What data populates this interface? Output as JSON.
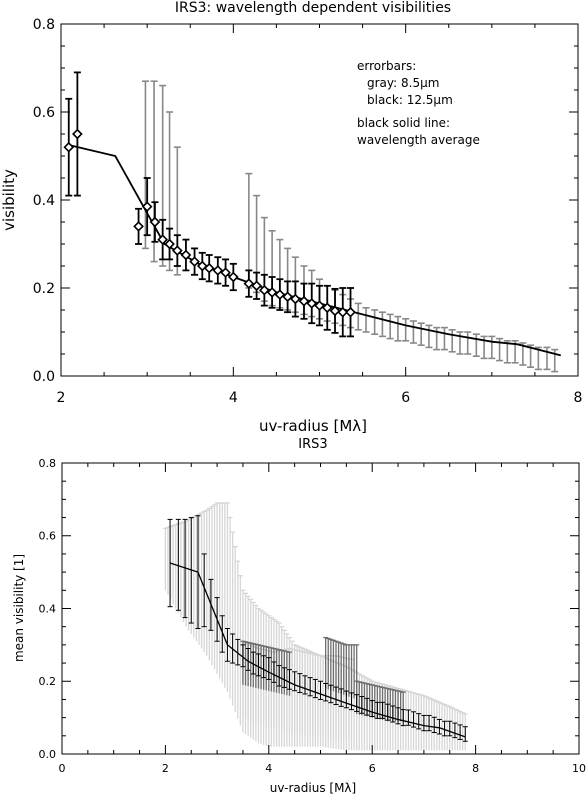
{
  "chart_data": [
    {
      "type": "scatter",
      "title": "IRS3: wavelength dependent visibilities",
      "xlabel": "uv-radius [Mλ]",
      "ylabel": "visibility",
      "xlim": [
        2,
        8
      ],
      "ylim": [
        0,
        0.8
      ],
      "xticks": [
        2,
        4,
        6,
        8
      ],
      "yticks": [
        0.0,
        0.2,
        0.4,
        0.6,
        0.8
      ],
      "grid": false,
      "colors": {
        "gray": "#888888",
        "black": "#000000"
      },
      "annotations": [
        "errorbars:",
        "gray: 8.5μm",
        "black: 12.5μm",
        "black solid line:",
        "wavelength average"
      ],
      "series": [
        {
          "name": "black: 12.5μm",
          "marker": "diamond",
          "x": [
            2.09,
            2.19,
            2.9,
            3.0,
            3.09,
            3.18,
            3.26,
            3.35,
            3.45,
            3.55,
            3.64,
            3.72,
            3.82,
            3.91,
            4.0,
            4.18,
            4.27,
            4.36,
            4.45,
            4.54,
            4.63,
            4.72,
            4.82,
            4.91,
            5.0,
            5.09,
            5.18,
            5.27,
            5.36
          ],
          "y": [
            0.52,
            0.55,
            0.34,
            0.385,
            0.35,
            0.31,
            0.3,
            0.285,
            0.275,
            0.26,
            0.25,
            0.245,
            0.24,
            0.235,
            0.225,
            0.21,
            0.205,
            0.195,
            0.19,
            0.185,
            0.18,
            0.175,
            0.17,
            0.165,
            0.16,
            0.155,
            0.148,
            0.145,
            0.145
          ],
          "err": [
            0.11,
            0.14,
            0.04,
            0.065,
            0.045,
            0.045,
            0.035,
            0.035,
            0.035,
            0.03,
            0.03,
            0.03,
            0.03,
            0.03,
            0.03,
            0.03,
            0.03,
            0.035,
            0.035,
            0.035,
            0.035,
            0.04,
            0.04,
            0.045,
            0.045,
            0.05,
            0.05,
            0.055,
            0.055
          ]
        },
        {
          "name": "gray: 8.5μm",
          "marker": "none",
          "x": [
            2.98,
            3.08,
            3.18,
            3.26,
            3.35,
            4.18,
            4.27,
            4.36,
            4.45,
            4.54,
            4.63,
            4.72,
            4.82,
            4.91,
            5.0,
            5.09,
            5.18,
            5.27,
            5.36,
            5.45,
            5.54,
            5.64,
            5.73,
            5.82,
            5.91,
            6.0,
            6.09,
            6.18,
            6.27,
            6.36,
            6.45,
            6.54,
            6.63,
            6.72,
            6.82,
            6.91,
            7.0,
            7.09,
            7.18,
            7.27,
            7.36,
            7.45,
            7.54,
            7.64,
            7.73
          ],
          "y": [
            0.43,
            0.41,
            0.39,
            0.37,
            0.36,
            0.32,
            0.28,
            0.26,
            0.25,
            0.24,
            0.23,
            0.22,
            0.21,
            0.2,
            0.19,
            0.175,
            0.16,
            0.15,
            0.145,
            0.14,
            0.135,
            0.13,
            0.125,
            0.12,
            0.115,
            0.11,
            0.105,
            0.1,
            0.095,
            0.09,
            0.09,
            0.085,
            0.08,
            0.08,
            0.075,
            0.07,
            0.07,
            0.065,
            0.06,
            0.06,
            0.055,
            0.05,
            0.045,
            0.045,
            0.04
          ],
          "yhigh": [
            0.67,
            0.67,
            0.66,
            0.6,
            0.52,
            0.46,
            0.41,
            0.36,
            0.33,
            0.31,
            0.29,
            0.27,
            0.25,
            0.24,
            0.22,
            0.205,
            0.195,
            0.185,
            0.175,
            0.165,
            0.155,
            0.15,
            0.145,
            0.14,
            0.135,
            0.13,
            0.125,
            0.12,
            0.115,
            0.11,
            0.11,
            0.105,
            0.1,
            0.1,
            0.095,
            0.09,
            0.09,
            0.085,
            0.08,
            0.08,
            0.075,
            0.07,
            0.065,
            0.065,
            0.06
          ],
          "ylow": [
            0.29,
            0.26,
            0.25,
            0.24,
            0.23,
            0.2,
            0.19,
            0.17,
            0.16,
            0.155,
            0.15,
            0.145,
            0.14,
            0.135,
            0.13,
            0.125,
            0.12,
            0.115,
            0.11,
            0.105,
            0.1,
            0.095,
            0.09,
            0.085,
            0.08,
            0.08,
            0.075,
            0.07,
            0.065,
            0.06,
            0.06,
            0.055,
            0.05,
            0.05,
            0.045,
            0.04,
            0.04,
            0.035,
            0.03,
            0.03,
            0.025,
            0.02,
            0.015,
            0.015,
            0.01
          ]
        },
        {
          "name": "black solid line: wavelength average",
          "marker": "line",
          "x": [
            2.09,
            2.63,
            3.0,
            3.2,
            3.6,
            4.0,
            4.5,
            5.0,
            5.5,
            6.0,
            6.5,
            7.0,
            7.3,
            7.8
          ],
          "y": [
            0.525,
            0.5,
            0.37,
            0.3,
            0.255,
            0.225,
            0.19,
            0.165,
            0.14,
            0.115,
            0.095,
            0.078,
            0.072,
            0.047
          ]
        }
      ]
    },
    {
      "type": "line",
      "title": "IRS3",
      "xlabel": "uv-radius [Mλ]",
      "ylabel": "mean visibility [1]",
      "xlim": [
        0,
        10
      ],
      "ylim": [
        0,
        0.8
      ],
      "xticks": [
        0,
        2,
        4,
        6,
        8,
        10
      ],
      "yticks": [
        0.0,
        0.2,
        0.4,
        0.6,
        0.8
      ],
      "grid": false,
      "colors": {
        "light_band": "#d6d6d6",
        "dark_band": "#6e6e6e",
        "line": "#000000"
      },
      "series": [
        {
          "name": "",
          "x": [
            2.09,
            2.63,
            3.0,
            3.2,
            3.6,
            4.0,
            4.5,
            5.0,
            5.5,
            6.0,
            6.5,
            7.0,
            7.3,
            7.8
          ],
          "y": [
            0.525,
            0.5,
            0.37,
            0.3,
            0.255,
            0.225,
            0.19,
            0.165,
            0.14,
            0.115,
            0.095,
            0.078,
            0.072,
            0.047
          ]
        }
      ],
      "error_bars": [
        {
          "x": [
            2.09,
            2.25,
            2.38,
            2.5,
            2.63,
            2.75,
            2.88,
            3.0,
            3.1,
            3.2,
            3.3,
            3.4,
            3.5,
            3.6,
            3.7,
            3.8,
            3.9,
            4.0,
            4.1,
            4.2,
            4.3,
            4.4,
            4.5,
            4.6,
            4.7,
            4.8,
            4.9,
            5.0,
            5.1,
            5.2,
            5.3,
            5.4,
            5.5,
            5.6,
            5.7,
            5.8,
            5.9,
            6.0,
            6.1,
            6.2,
            6.3,
            6.4,
            6.5,
            6.6,
            6.7,
            6.8,
            6.9,
            7.0,
            7.1,
            7.2,
            7.3,
            7.4,
            7.5,
            7.6,
            7.7,
            7.8
          ],
          "y": [
            0.525,
            0.52,
            0.51,
            0.505,
            0.5,
            0.45,
            0.41,
            0.37,
            0.33,
            0.3,
            0.29,
            0.28,
            0.27,
            0.26,
            0.25,
            0.245,
            0.24,
            0.235,
            0.225,
            0.215,
            0.21,
            0.205,
            0.2,
            0.195,
            0.19,
            0.185,
            0.18,
            0.175,
            0.17,
            0.165,
            0.16,
            0.155,
            0.15,
            0.145,
            0.14,
            0.135,
            0.13,
            0.125,
            0.12,
            0.12,
            0.115,
            0.11,
            0.105,
            0.1,
            0.1,
            0.095,
            0.09,
            0.085,
            0.085,
            0.08,
            0.075,
            0.07,
            0.07,
            0.065,
            0.06,
            0.055
          ],
          "err": [
            0.12,
            0.125,
            0.135,
            0.145,
            0.155,
            0.1,
            0.07,
            0.06,
            0.05,
            0.045,
            0.04,
            0.035,
            0.03,
            0.03,
            0.03,
            0.03,
            0.03,
            0.03,
            0.028,
            0.028,
            0.027,
            0.027,
            0.026,
            0.026,
            0.025,
            0.025,
            0.025,
            0.025,
            0.024,
            0.024,
            0.024,
            0.024,
            0.023,
            0.023,
            0.023,
            0.023,
            0.023,
            0.022,
            0.022,
            0.022,
            0.022,
            0.022,
            0.022,
            0.022,
            0.021,
            0.021,
            0.021,
            0.021,
            0.021,
            0.021,
            0.02,
            0.02,
            0.02,
            0.02,
            0.02,
            0.02
          ]
        }
      ],
      "bands": [
        {
          "shade": "light",
          "x": [
            2.0,
            2.4,
            2.8,
            3.0,
            3.2,
            3.5,
            3.8,
            4.0,
            4.2,
            4.5,
            5.0,
            5.5,
            6.0,
            6.5,
            7.0,
            7.5,
            7.8
          ],
          "yhigh": [
            0.62,
            0.64,
            0.67,
            0.69,
            0.69,
            0.45,
            0.4,
            0.38,
            0.36,
            0.3,
            0.27,
            0.24,
            0.2,
            0.18,
            0.16,
            0.13,
            0.11
          ],
          "ylow": [
            0.45,
            0.35,
            0.27,
            0.22,
            0.17,
            0.06,
            0.03,
            0.02,
            0.02,
            0.02,
            0.02,
            0.01,
            0.01,
            0.01,
            0.01,
            0.01,
            0.01
          ]
        },
        {
          "shade": "light",
          "x": [
            3.5,
            3.8,
            4.1,
            4.4,
            4.7,
            5.0,
            5.3,
            5.6
          ],
          "yhigh": [
            0.31,
            0.29,
            0.28,
            0.29,
            0.28,
            0.27,
            0.27,
            0.26
          ],
          "ylow": [
            0.1,
            0.08,
            0.07,
            0.06,
            0.05,
            0.05,
            0.04,
            0.04
          ]
        },
        {
          "shade": "dark",
          "x": [
            3.5,
            3.8,
            4.1,
            4.4
          ],
          "yhigh": [
            0.31,
            0.3,
            0.29,
            0.28
          ],
          "ylow": [
            0.19,
            0.18,
            0.17,
            0.16
          ]
        },
        {
          "shade": "dark",
          "x": [
            5.1,
            5.3,
            5.5,
            5.7
          ],
          "yhigh": [
            0.32,
            0.31,
            0.3,
            0.3
          ],
          "ylow": [
            0.18,
            0.17,
            0.16,
            0.15
          ]
        },
        {
          "shade": "dark",
          "x": [
            5.7,
            6.0,
            6.3,
            6.6
          ],
          "yhigh": [
            0.2,
            0.19,
            0.18,
            0.17
          ],
          "ylow": [
            0.11,
            0.1,
            0.09,
            0.09
          ]
        }
      ]
    }
  ]
}
